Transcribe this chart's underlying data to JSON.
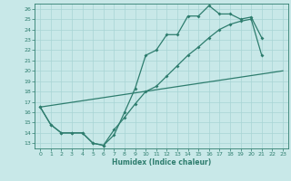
{
  "xlabel": "Humidex (Indice chaleur)",
  "bg_color": "#c8e8e8",
  "line_color": "#2e7d6e",
  "grid_color": "#a8d4d4",
  "xlim": [
    -0.5,
    23.5
  ],
  "ylim": [
    12.5,
    26.5
  ],
  "yticks": [
    13,
    14,
    15,
    16,
    17,
    18,
    19,
    20,
    21,
    22,
    23,
    24,
    25,
    26
  ],
  "xticks": [
    0,
    1,
    2,
    3,
    4,
    5,
    6,
    7,
    8,
    9,
    10,
    11,
    12,
    13,
    14,
    15,
    16,
    17,
    18,
    19,
    20,
    21,
    22,
    23
  ],
  "line1_y": [
    16.5,
    14.8,
    14.0,
    14.0,
    14.0,
    13.0,
    12.8,
    13.8,
    16.0,
    18.3,
    21.5,
    22.0,
    23.5,
    23.5,
    25.3,
    25.3,
    26.3,
    25.5,
    25.5,
    25.0,
    25.2,
    23.2,
    null,
    null
  ],
  "line2_y": [
    16.5,
    14.8,
    14.0,
    14.0,
    14.0,
    13.0,
    12.8,
    14.3,
    15.5,
    16.8,
    18.0,
    18.5,
    19.5,
    20.5,
    21.5,
    22.3,
    23.2,
    24.0,
    24.5,
    24.8,
    25.0,
    21.5,
    null,
    null
  ],
  "line3_x": [
    0,
    23
  ],
  "line3_y": [
    16.5,
    20.0
  ],
  "markersize": 2.0,
  "linewidth": 0.9,
  "tick_fontsize": 4.5,
  "xlabel_fontsize": 5.5
}
